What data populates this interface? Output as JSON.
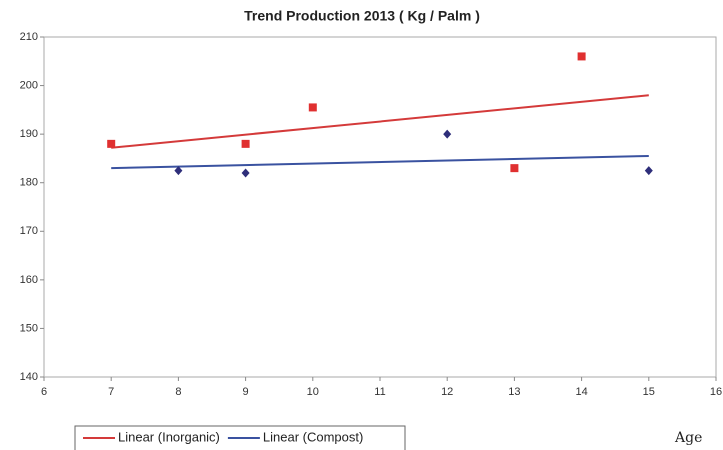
{
  "chart_data": {
    "type": "scatter",
    "title": "Trend Production 2013 ( Kg / Palm )",
    "x_label": "Age",
    "xlim": [
      6,
      16
    ],
    "xticks": [
      6,
      7,
      8,
      9,
      10,
      11,
      12,
      13,
      14,
      15,
      16
    ],
    "ylim": [
      140,
      210
    ],
    "yticks": [
      140,
      150,
      160,
      170,
      180,
      190,
      200,
      210
    ],
    "series": [
      {
        "color": "#e03030",
        "marker": "square",
        "x": [
          7,
          9,
          10,
          13,
          14
        ],
        "values": [
          188,
          188,
          195.5,
          183,
          206
        ]
      },
      {
        "color": "#2e2e7a",
        "marker": "diamond",
        "x": [
          8,
          9,
          12,
          15
        ],
        "values": [
          182.5,
          182,
          190,
          182.5
        ]
      }
    ],
    "trendlines": [
      {
        "name": "Linear (Inorganic)",
        "color": "#d43a3a",
        "x": [
          7,
          15
        ],
        "values": [
          187.2,
          198
        ]
      },
      {
        "name": "Linear (Compost)",
        "color": "#3a52a0",
        "x": [
          7,
          15
        ],
        "values": [
          183,
          185.5
        ]
      }
    ]
  }
}
